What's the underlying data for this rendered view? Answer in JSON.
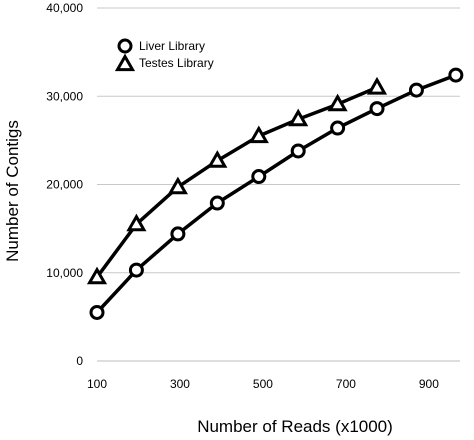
{
  "chart_data": {
    "type": "line",
    "title": "",
    "xlabel": "Number of Reads (x1000)",
    "ylabel": "Number of Contigs",
    "xlim": [
      100,
      975
    ],
    "ylim": [
      0,
      40000
    ],
    "x_ticks": [
      100,
      300,
      500,
      700,
      900
    ],
    "x_tick_labels": [
      "100",
      "300",
      "500",
      "700",
      "900"
    ],
    "y_ticks": [
      0,
      10000,
      20000,
      30000,
      40000
    ],
    "y_tick_labels": [
      "0",
      "10,000",
      "20,000",
      "30,000",
      "40,000"
    ],
    "grid": "horizontal",
    "legend_position": "top-left",
    "series": [
      {
        "name": "Liver Library",
        "marker": "circle",
        "color": "#000000",
        "x": [
          100,
          195,
          295,
          390,
          490,
          585,
          680,
          775,
          870,
          965
        ],
        "y": [
          5500,
          10300,
          14400,
          17900,
          20900,
          23800,
          26400,
          28600,
          30700,
          32400
        ]
      },
      {
        "name": "Testes Library",
        "marker": "triangle",
        "color": "#000000",
        "x": [
          100,
          195,
          295,
          390,
          490,
          585,
          680,
          775
        ],
        "y": [
          9500,
          15500,
          19700,
          22700,
          25500,
          27400,
          29100,
          31000
        ]
      }
    ]
  }
}
